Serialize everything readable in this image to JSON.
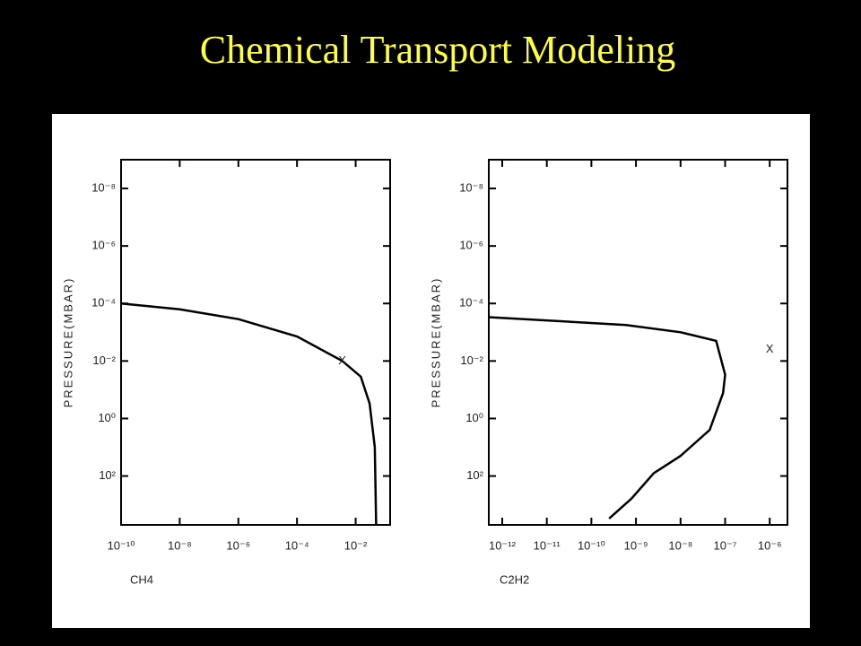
{
  "title": "Chemical Transport Modeling",
  "chart_data": [
    {
      "type": "line",
      "x_label": "CH4",
      "y_label": "PRESSURE(MBAR)",
      "xscale": "log",
      "yscale": "log",
      "y_inverted": true,
      "color": "#000000",
      "xlim": [
        1e-10,
        0.15
      ],
      "ylim": [
        1e-09,
        5000
      ],
      "xticks": [
        {
          "value": 1e-10,
          "label": "10⁻¹⁰"
        },
        {
          "value": 1e-08,
          "label": "10⁻⁸"
        },
        {
          "value": 1e-06,
          "label": "10⁻⁶"
        },
        {
          "value": 0.0001,
          "label": "10⁻⁴"
        },
        {
          "value": 0.01,
          "label": "10⁻²"
        }
      ],
      "yticks": [
        {
          "value": 1e-08,
          "label": "10⁻⁸"
        },
        {
          "value": 1e-06,
          "label": "10⁻⁶"
        },
        {
          "value": 0.0001,
          "label": "10⁻⁴"
        },
        {
          "value": 0.01,
          "label": "10⁻²"
        },
        {
          "value": 1,
          "label": "10⁰"
        },
        {
          "value": 100,
          "label": "10²"
        }
      ],
      "x": [
        1e-10,
        1e-08,
        1e-06,
        0.0001,
        0.0035,
        0.015,
        0.03,
        0.045,
        0.05
      ],
      "values": [
        0.0001,
        0.00016,
        0.00035,
        0.0014,
        0.01,
        0.035,
        0.3,
        10,
        5000
      ],
      "marker": {
        "x": 0.0035,
        "y": 0.01,
        "label": "X"
      }
    },
    {
      "type": "line",
      "x_label": "C2H2",
      "y_label": "PRESSURE(MBAR)",
      "xscale": "log",
      "yscale": "log",
      "y_inverted": true,
      "color": "#000000",
      "xlim": [
        5e-13,
        2.5e-06
      ],
      "ylim": [
        1e-09,
        5000
      ],
      "xticks": [
        {
          "value": 1e-12,
          "label": "10⁻¹²"
        },
        {
          "value": 1e-11,
          "label": "10⁻¹¹"
        },
        {
          "value": 1e-10,
          "label": "10⁻¹⁰"
        },
        {
          "value": 1e-09,
          "label": "10⁻⁹"
        },
        {
          "value": 1e-08,
          "label": "10⁻⁸"
        },
        {
          "value": 1e-07,
          "label": "10⁻⁷"
        },
        {
          "value": 1e-06,
          "label": "10⁻⁶"
        }
      ],
      "yticks": [
        {
          "value": 1e-08,
          "label": "10⁻⁸"
        },
        {
          "value": 1e-06,
          "label": "10⁻⁶"
        },
        {
          "value": 0.0001,
          "label": "10⁻⁴"
        },
        {
          "value": 0.01,
          "label": "10⁻²"
        },
        {
          "value": 1,
          "label": "10⁰"
        },
        {
          "value": 100,
          "label": "10²"
        }
      ],
      "x": [
        5e-13,
        6e-10,
        1e-08,
        6.3e-08,
        1e-07,
        9e-08,
        4.5e-08,
        1e-08,
        2.5e-09,
        8e-10,
        2.5e-10
      ],
      "values": [
        0.0003,
        0.00056,
        0.001,
        0.002,
        0.03,
        0.13,
        2.5,
        20,
        80,
        600,
        3000
      ],
      "marker": {
        "x": 1e-06,
        "y": 0.004,
        "label": "X"
      }
    }
  ]
}
